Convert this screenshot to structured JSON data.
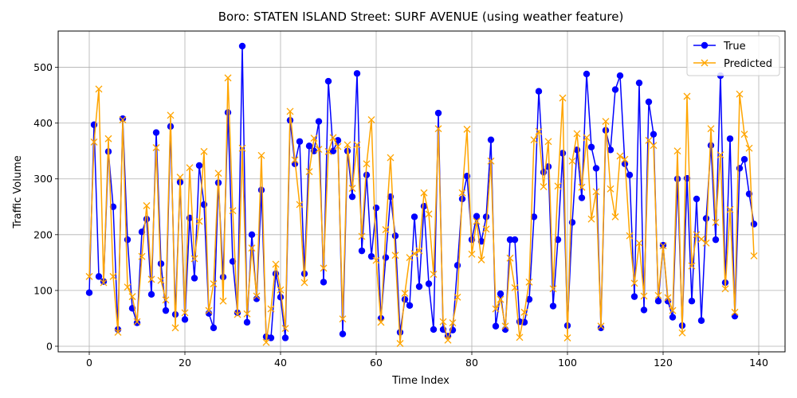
{
  "chart_data": {
    "type": "line",
    "title": "Boro: STATEN ISLAND Street: SURF AVENUE (using weather feature)",
    "xlabel": "Time Index",
    "ylabel": "Traffic Volume",
    "xlim": [
      -6.5,
      145.5
    ],
    "ylim": [
      -10,
      565
    ],
    "xticks": [
      0,
      20,
      40,
      60,
      80,
      100,
      120,
      140
    ],
    "yticks": [
      0,
      100,
      200,
      300,
      400,
      500
    ],
    "grid": true,
    "legend_position": "top-right",
    "series": [
      {
        "name": "True",
        "color": "#0000ff",
        "marker": "circle",
        "values": [
          96,
          397,
          125,
          116,
          349,
          250,
          30,
          408,
          191,
          68,
          42,
          205,
          228,
          93,
          383,
          148,
          64,
          394,
          57,
          294,
          48,
          230,
          122,
          324,
          254,
          59,
          33,
          293,
          124,
          419,
          152,
          60,
          538,
          43,
          200,
          85,
          280,
          17,
          15,
          130,
          88,
          15,
          405,
          327,
          367,
          130,
          359,
          350,
          403,
          115,
          475,
          350,
          369,
          22,
          350,
          268,
          489,
          171,
          307,
          161,
          248,
          50,
          159,
          268,
          198,
          25,
          84,
          73,
          232,
          107,
          251,
          112,
          30,
          418,
          30,
          18,
          29,
          145,
          264,
          305,
          191,
          233,
          188,
          232,
          370,
          36,
          94,
          30,
          191,
          191,
          44,
          43,
          84,
          232,
          457,
          312,
          322,
          72,
          191,
          346,
          37,
          222,
          352,
          266,
          488,
          357,
          319,
          33,
          387,
          352,
          460,
          485,
          327,
          307,
          89,
          472,
          65,
          438,
          380,
          81,
          181,
          81,
          52,
          300,
          37,
          301,
          81,
          264,
          46,
          229,
          360,
          191,
          485,
          114,
          372,
          54,
          319,
          335,
          273,
          219
        ]
      },
      {
        "name": "Predicted",
        "color": "#ffa500",
        "marker": "x",
        "values": [
          125,
          366,
          461,
          114,
          372,
          125,
          25,
          406,
          106,
          89,
          44,
          161,
          252,
          120,
          356,
          118,
          83,
          414,
          33,
          303,
          60,
          320,
          157,
          224,
          349,
          64,
          112,
          310,
          81,
          481,
          243,
          57,
          355,
          58,
          176,
          90,
          342,
          7,
          67,
          147,
          101,
          32,
          421,
          334,
          254,
          114,
          313,
          373,
          353,
          140,
          349,
          374,
          358,
          49,
          361,
          283,
          361,
          197,
          327,
          406,
          154,
          43,
          209,
          338,
          163,
          5,
          95,
          159,
          166,
          171,
          275,
          237,
          129,
          390,
          44,
          11,
          42,
          88,
          275,
          389,
          165,
          224,
          155,
          210,
          332,
          67,
          84,
          36,
          158,
          105,
          16,
          61,
          115,
          370,
          385,
          286,
          367,
          103,
          287,
          445,
          15,
          332,
          381,
          285,
          374,
          228,
          277,
          36,
          403,
          282,
          232,
          341,
          335,
          198,
          113,
          185,
          90,
          369,
          360,
          91,
          180,
          87,
          64,
          350,
          24,
          448,
          144,
          200,
          192,
          185,
          390,
          222,
          343,
          103,
          245,
          61,
          452,
          380,
          355,
          162
        ]
      }
    ]
  }
}
